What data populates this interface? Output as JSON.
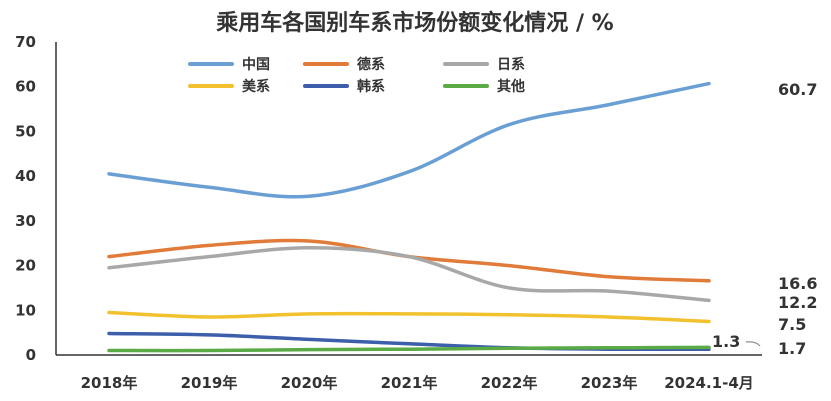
{
  "chart_data": {
    "type": "line",
    "title": "乘用车各国别车系市场份额变化情况 / %",
    "xlabel": "",
    "ylabel": "",
    "categories": [
      "2018年",
      "2019年",
      "2020年",
      "2021年",
      "2022年",
      "2023年",
      "2024.1-4月"
    ],
    "ylim": [
      0,
      70
    ],
    "yticks": [
      0,
      10,
      20,
      30,
      40,
      50,
      60,
      70
    ],
    "grid": false,
    "legend_position": "top",
    "series": [
      {
        "name": "中国",
        "color": "#6a9fd4",
        "values": [
          40.5,
          37.5,
          35.5,
          41.0,
          51.5,
          56.0,
          60.7
        ]
      },
      {
        "name": "德系",
        "color": "#e07b39",
        "values": [
          22.0,
          24.5,
          25.5,
          22.0,
          20.0,
          17.5,
          16.6
        ]
      },
      {
        "name": "日系",
        "color": "#a8a8a8",
        "values": [
          19.5,
          22.0,
          24.0,
          22.0,
          15.0,
          14.3,
          12.2
        ]
      },
      {
        "name": "美系",
        "color": "#f2c12e",
        "values": [
          9.5,
          8.5,
          9.2,
          9.2,
          9.0,
          8.5,
          7.5
        ]
      },
      {
        "name": "韩系",
        "color": "#3c5eab",
        "values": [
          4.8,
          4.5,
          3.5,
          2.5,
          1.6,
          1.3,
          1.3
        ]
      },
      {
        "name": "其他",
        "color": "#5aab46",
        "values": [
          1.0,
          1.0,
          1.2,
          1.3,
          1.5,
          1.6,
          1.7
        ]
      }
    ],
    "end_labels": [
      {
        "series": "中国",
        "text": "60.7"
      },
      {
        "series": "德系",
        "text": "16.6"
      },
      {
        "series": "日系",
        "text": "12.2"
      },
      {
        "series": "美系",
        "text": "7.5"
      },
      {
        "series": "韩系",
        "text": "1.3"
      },
      {
        "series": "其他",
        "text": "1.7"
      }
    ]
  }
}
